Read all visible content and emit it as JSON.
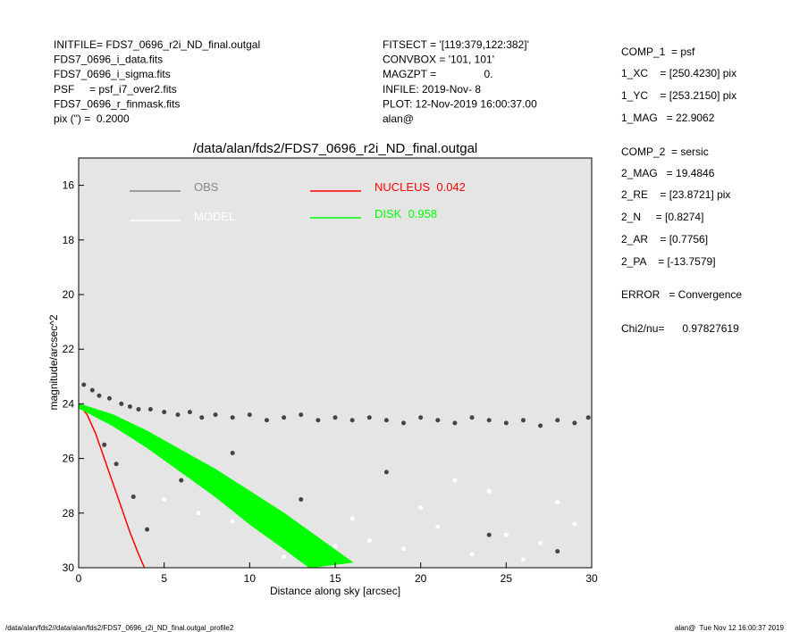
{
  "header": {
    "left": [
      "INITFILE= FDS7_0696_r2i_ND_final.outgal",
      "FDS7_0696_i_data.fits",
      "FDS7_0696_i_sigma.fits",
      "PSF     = psf_i7_over2.fits",
      "FDS7_0696_r_finmask.fits",
      "pix (\") =  0.2000"
    ],
    "middle": [
      "FITSECT = '[119:379,122:382]'",
      "CONVBOX = '101, 101'",
      "MAGZPT =                0.",
      "INFILE: 2019-Nov- 8",
      "PLOT: 12-Nov-2019 16:00:37.00",
      "alan@"
    ],
    "right": [
      "COMP_1  = psf",
      "1_XC    = [250.4230] pix",
      "1_YC    = [253.2150] pix",
      "1_MAG   = 22.9062",
      "COMP_2  = sersic",
      "2_MAG   = 19.4846",
      "2_RE    = [23.8721] pix",
      "2_N     = [0.8274]",
      "2_AR    = [0.7756]",
      "2_PA    = [-13.7579]",
      "ERROR   = Convergence",
      "Chi2/nu=      0.97827619"
    ]
  },
  "footer": {
    "left": "/data/alan/fds2//data/alan/fds2/FDS7_0696_r2i_ND_final.outgal_profile2",
    "right": "alan@  Tue Nov 12 16:00:37 2019"
  },
  "chart_data": {
    "type": "scatter",
    "title": "/data/alan/fds2/FDS7_0696_r2i_ND_final.outgal",
    "x_label": "Distance along sky [arcsec]",
    "y_label": "magnitude/arcsec^2",
    "xlim": [
      0,
      30
    ],
    "ylim": [
      30,
      15
    ],
    "xticks": [
      0,
      5,
      10,
      15,
      20,
      25,
      30
    ],
    "yticks": [
      16,
      18,
      20,
      22,
      24,
      26,
      28,
      30
    ],
    "background": "#e5e5e5",
    "series": [
      {
        "name": "OBS",
        "color": "#444444",
        "legend_color": "#888888",
        "kind": "points",
        "x": [
          0.3,
          0.8,
          1.2,
          1.8,
          2.5,
          3,
          3.5,
          4.2,
          5,
          5.8,
          6.5,
          7.2,
          8,
          9,
          10,
          11,
          12,
          13,
          14,
          15,
          16,
          17,
          18,
          19,
          20,
          21,
          22,
          23,
          24,
          25,
          26,
          27,
          28,
          29,
          29.8,
          1.5,
          2.2,
          3.2,
          4,
          6,
          9,
          13,
          18,
          24,
          28
        ],
        "values": [
          23.3,
          23.5,
          23.7,
          23.8,
          24.0,
          24.1,
          24.2,
          24.2,
          24.3,
          24.4,
          24.3,
          24.5,
          24.4,
          24.5,
          24.4,
          24.6,
          24.5,
          24.4,
          24.6,
          24.5,
          24.6,
          24.5,
          24.6,
          24.7,
          24.5,
          24.6,
          24.7,
          24.5,
          24.6,
          24.7,
          24.6,
          24.8,
          24.6,
          24.7,
          24.5,
          25.5,
          26.2,
          27.4,
          28.6,
          26.8,
          25.8,
          27.5,
          26.5,
          28.8,
          29.4
        ]
      },
      {
        "name": "MODEL",
        "color": "#ffffff",
        "legend_color": "#ffffff",
        "kind": "points",
        "x": [
          5,
          7,
          9,
          11,
          13,
          15,
          17,
          19,
          21,
          23,
          25,
          27,
          29,
          20,
          24,
          28,
          12,
          16,
          26,
          22
        ],
        "values": [
          27.5,
          28,
          28.3,
          28.6,
          29,
          29.2,
          29,
          29.3,
          28.5,
          29.5,
          28.8,
          29.1,
          28.4,
          27.8,
          27.2,
          27.6,
          29.6,
          28.2,
          29.7,
          26.8
        ]
      },
      {
        "name": "NUCLEUS  0.042",
        "color": "#ff0000",
        "kind": "line",
        "x": [
          0,
          0.5,
          1,
          1.5,
          2,
          2.5,
          3,
          3.5,
          3.85
        ],
        "values": [
          24.0,
          24.4,
          25.1,
          26.0,
          26.9,
          27.8,
          28.7,
          29.5,
          30
        ]
      },
      {
        "name": "DISK  0.958",
        "color": "#00ff00",
        "kind": "band",
        "x": [
          0,
          2,
          4,
          6,
          8,
          10,
          12,
          14,
          16
        ],
        "values": [
          24.0,
          24.4,
          25.0,
          25.7,
          26.4,
          27.2,
          28.0,
          28.9,
          29.8
        ],
        "x_low": [
          0,
          2,
          4,
          6,
          8,
          10,
          12,
          13.5
        ],
        "values_low": [
          24.15,
          24.8,
          25.6,
          26.5,
          27.4,
          28.4,
          29.3,
          30
        ]
      }
    ]
  }
}
